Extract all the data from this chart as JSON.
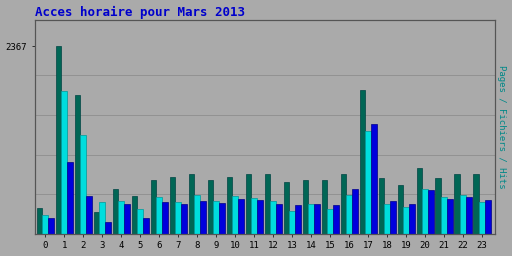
{
  "title": "Acces horaire pour Mars 2013",
  "ylabel_right": "Pages / Fichiers / Hits",
  "hours": [
    0,
    1,
    2,
    3,
    4,
    5,
    6,
    7,
    8,
    9,
    10,
    11,
    12,
    13,
    14,
    15,
    16,
    17,
    18,
    19,
    20,
    21,
    22,
    23
  ],
  "pages": [
    320,
    2367,
    1750,
    280,
    560,
    480,
    680,
    720,
    750,
    680,
    720,
    750,
    750,
    650,
    680,
    680,
    750,
    1820,
    700,
    620,
    830,
    700,
    760,
    760
  ],
  "fichiers": [
    200,
    900,
    480,
    150,
    380,
    200,
    400,
    380,
    420,
    390,
    440,
    430,
    370,
    360,
    380,
    360,
    560,
    1380,
    420,
    380,
    550,
    440,
    460,
    430
  ],
  "hits": [
    240,
    1800,
    1250,
    400,
    420,
    310,
    460,
    400,
    490,
    420,
    480,
    450,
    420,
    290,
    380,
    310,
    490,
    1300,
    370,
    340,
    560,
    460,
    490,
    400
  ],
  "color_pages": "#006655",
  "color_fichiers": "#0000dd",
  "color_hits": "#00dddd",
  "background_color": "#aaaaaa",
  "plot_bg": "#aaaaaa",
  "fig_bg": "#aaaaaa",
  "title_color": "#0000cc",
  "ylabel_color": "#008888",
  "ytick_label": "2367",
  "ylim": [
    0,
    2700
  ],
  "bar_width": 0.3,
  "figwidth": 5.12,
  "figheight": 2.56,
  "dpi": 100
}
